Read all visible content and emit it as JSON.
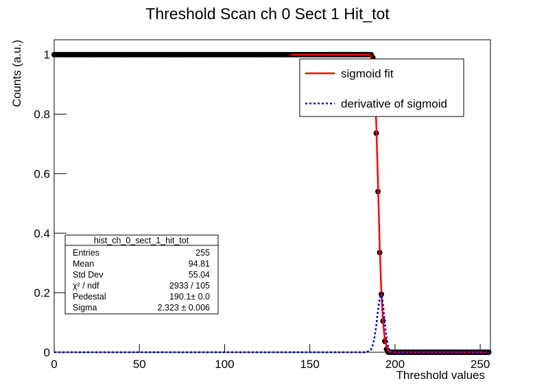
{
  "chart_data": {
    "type": "scatter",
    "title": "Threshold Scan ch 0 Sect 1 Hit_tot",
    "x_label": "Threshold values",
    "y_label": "Counts (a.u.)",
    "xlim": [
      0,
      256
    ],
    "ylim": [
      0,
      1.05
    ],
    "xticks": [
      0,
      50,
      100,
      150,
      200,
      250
    ],
    "yticks": [
      0,
      0.2,
      0.4,
      0.6,
      0.8,
      1
    ],
    "series": [
      {
        "name": "hist_ch_0_sect_1_hit_tot",
        "kind": "points",
        "color": "#000000",
        "x": [
          0,
          1,
          2,
          3,
          4,
          5,
          6,
          7,
          8,
          9,
          10,
          11,
          12,
          13,
          14,
          15,
          16,
          17,
          18,
          19,
          20,
          21,
          22,
          23,
          24,
          25,
          26,
          27,
          28,
          29,
          30,
          31,
          32,
          33,
          34,
          35,
          36,
          37,
          38,
          39,
          40,
          41,
          42,
          43,
          44,
          45,
          46,
          47,
          48,
          49,
          50,
          51,
          52,
          53,
          54,
          55,
          56,
          57,
          58,
          59,
          60,
          61,
          62,
          63,
          64,
          65,
          66,
          67,
          68,
          69,
          70,
          71,
          72,
          73,
          74,
          75,
          76,
          77,
          78,
          79,
          80,
          81,
          82,
          83,
          84,
          85,
          86,
          87,
          88,
          89,
          90,
          91,
          92,
          93,
          94,
          95,
          96,
          97,
          98,
          99,
          100,
          101,
          102,
          103,
          104,
          105,
          106,
          107,
          108,
          109,
          110,
          111,
          112,
          113,
          114,
          115,
          116,
          117,
          118,
          119,
          120,
          121,
          122,
          123,
          124,
          125,
          126,
          127,
          128,
          129,
          130,
          131,
          132,
          133,
          134,
          135,
          136,
          137,
          138,
          139,
          140,
          141,
          142,
          143,
          144,
          145,
          146,
          147,
          148,
          149,
          150,
          151,
          152,
          153,
          154,
          155,
          156,
          157,
          158,
          159,
          160,
          161,
          162,
          163,
          164,
          165,
          166,
          167,
          168,
          169,
          170,
          171,
          172,
          173,
          174,
          175,
          176,
          177,
          178,
          179,
          180,
          181,
          182,
          183,
          184,
          185,
          186,
          187,
          188,
          189,
          190,
          191,
          192,
          193,
          194,
          195,
          196,
          197,
          198,
          199,
          200,
          201,
          202,
          203,
          204,
          205,
          206,
          207,
          208,
          209,
          210,
          211,
          212,
          213,
          214,
          215,
          216,
          217,
          218,
          219,
          220,
          221,
          222,
          223,
          224,
          225,
          226,
          227,
          228,
          229,
          230,
          231,
          232,
          233,
          234,
          235,
          236,
          237,
          238,
          239,
          240,
          241,
          242,
          243,
          244,
          245,
          246,
          247,
          248,
          249,
          250,
          251,
          252,
          253,
          254,
          255
        ],
        "values": [
          1,
          1,
          1,
          1,
          1,
          1,
          1,
          1,
          1,
          1,
          1,
          1,
          1,
          1,
          1,
          1,
          1,
          1,
          1,
          1,
          1,
          1,
          1,
          1,
          1,
          1,
          1,
          1,
          1,
          1,
          1,
          1,
          1,
          1,
          1,
          1,
          1,
          1,
          1,
          1,
          1,
          1,
          1,
          1,
          1,
          1,
          1,
          1,
          1,
          1,
          1,
          1,
          1,
          1,
          1,
          1,
          1,
          1,
          1,
          1,
          1,
          1,
          1,
          1,
          1,
          1,
          1,
          1,
          1,
          1,
          1,
          1,
          1,
          1,
          1,
          1,
          1,
          1,
          1,
          1,
          1,
          1,
          1,
          1,
          1,
          1,
          1,
          1,
          1,
          1,
          1,
          1,
          1,
          1,
          1,
          1,
          1,
          1,
          1,
          1,
          1,
          1,
          1,
          1,
          1,
          1,
          1,
          1,
          1,
          1,
          1,
          1,
          1,
          1,
          1,
          1,
          1,
          1,
          1,
          1,
          1,
          1,
          1,
          1,
          1,
          1,
          1,
          1,
          1,
          1,
          1,
          1,
          1,
          1,
          1,
          1,
          1,
          1,
          1,
          1,
          1,
          1,
          1,
          1,
          1,
          1,
          1,
          1,
          1,
          1,
          1,
          1,
          1,
          1,
          1,
          1,
          1,
          1,
          1,
          1,
          1,
          1,
          1,
          1,
          1,
          1,
          1,
          1,
          1,
          1,
          1,
          1,
          1,
          1,
          1,
          1,
          1,
          1,
          1,
          1,
          1,
          1,
          1,
          1,
          1,
          1,
          1,
          0.99,
          0.8,
          0.736,
          0.54,
          0.335,
          0.195,
          0.105,
          0.037,
          0.01,
          0,
          0,
          0,
          0,
          0,
          0,
          0,
          0,
          0,
          0,
          0,
          0,
          0,
          0,
          0,
          0,
          0,
          0,
          0,
          0,
          0,
          0,
          0,
          0,
          0,
          0,
          0,
          0,
          0,
          0,
          0,
          0,
          0,
          0,
          0,
          0,
          0,
          0,
          0,
          0,
          0,
          0,
          0,
          0,
          0,
          0,
          0,
          0,
          0,
          0,
          0,
          0,
          0,
          0,
          0,
          0,
          0,
          0,
          0,
          0
        ]
      },
      {
        "name": "sigmoid fit",
        "kind": "line",
        "color": "#ff0000",
        "x": [
          139,
          185,
          186,
          187,
          188,
          189,
          190,
          191,
          192,
          193,
          194,
          195,
          196,
          197,
          199,
          255
        ],
        "values": [
          1,
          1,
          0.99,
          0.97,
          0.9,
          0.77,
          0.57,
          0.36,
          0.2,
          0.1,
          0.045,
          0.018,
          0.007,
          0.002,
          0,
          0
        ]
      },
      {
        "name": "derivative of sigmoid",
        "kind": "dotted",
        "color": "#0000cc",
        "x": [
          0,
          183,
          185,
          186,
          187,
          188,
          189,
          190,
          191,
          192,
          193,
          194,
          195,
          196,
          197,
          199,
          255
        ],
        "values": [
          0,
          0,
          0.005,
          0.01,
          0.025,
          0.05,
          0.09,
          0.14,
          0.18,
          0.2,
          0.16,
          0.1,
          0.05,
          0.02,
          0.006,
          0,
          0
        ]
      }
    ],
    "stats": {
      "title": "hist_ch_0_sect_1_hit_tot",
      "rows": [
        [
          "Entries",
          "255"
        ],
        [
          "Mean",
          "94.81"
        ],
        [
          "Std Dev",
          "55.04"
        ],
        [
          "χ² / ndf",
          "2933 / 105"
        ],
        [
          "Pedestal",
          "190.1± 0.0"
        ],
        [
          "Sigma",
          "2.323 ± 0.006"
        ]
      ]
    }
  }
}
